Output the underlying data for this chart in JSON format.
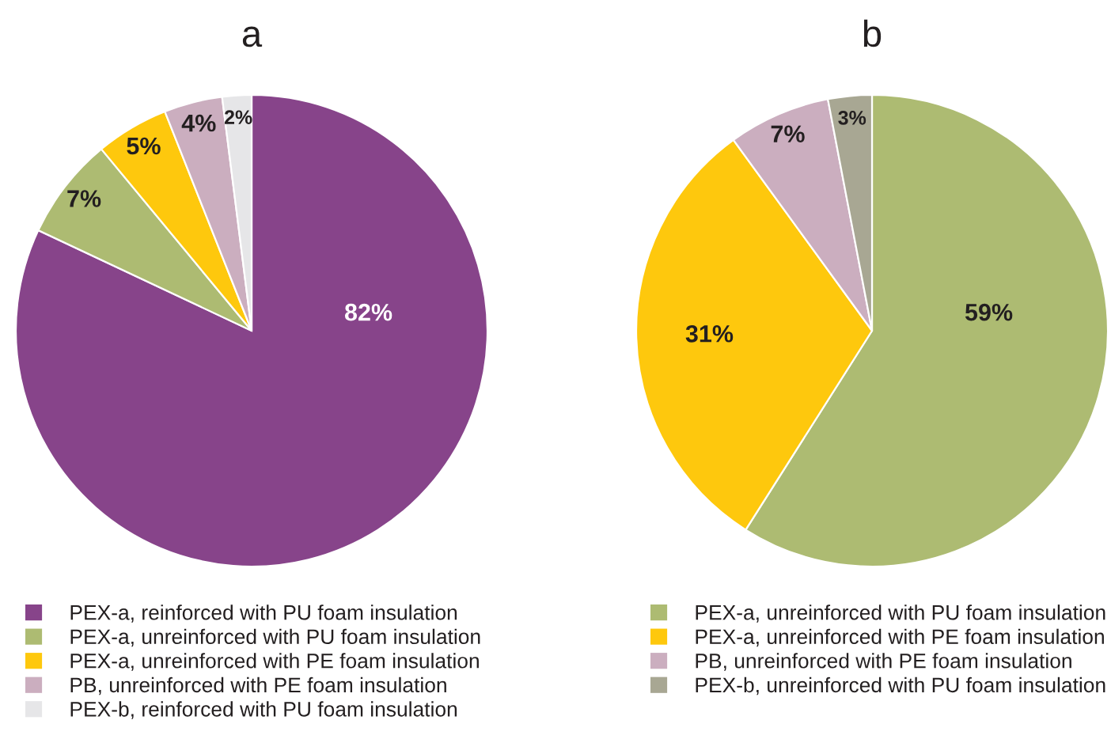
{
  "chart_data": [
    {
      "type": "pie",
      "title": "a",
      "categories": [
        "PEX-a, reinforced with PU foam insulation",
        "PEX-a, unreinforced with PU foam insulation",
        "PEX-a, unreinforced with PE foam insulation",
        "PB, unreinforced with PE foam insulation",
        "PEX-b, reinforced with PU foam insulation"
      ],
      "values": [
        82,
        7,
        5,
        4,
        2
      ],
      "colors": [
        "#87448a",
        "#adbb72",
        "#fec80d",
        "#cbaebf",
        "#e6e6e8"
      ],
      "value_labels": [
        "82%",
        "7%",
        "5%",
        "4%",
        "2%"
      ],
      "legend": "bottom"
    },
    {
      "type": "pie",
      "title": "b",
      "categories": [
        "PEX-a, unreinforced with PU foam insulation",
        "PEX-a, unreinforced with PE foam insulation",
        "PB, unreinforced with PE foam insulation",
        "PEX-b, unreinforced with PU foam insulation"
      ],
      "values": [
        59,
        31,
        7,
        3
      ],
      "colors": [
        "#adbb72",
        "#fec80d",
        "#cbaebf",
        "#a8a793"
      ],
      "value_labels": [
        "59%",
        "31%",
        "7%",
        "3%"
      ],
      "legend": "bottom"
    }
  ]
}
